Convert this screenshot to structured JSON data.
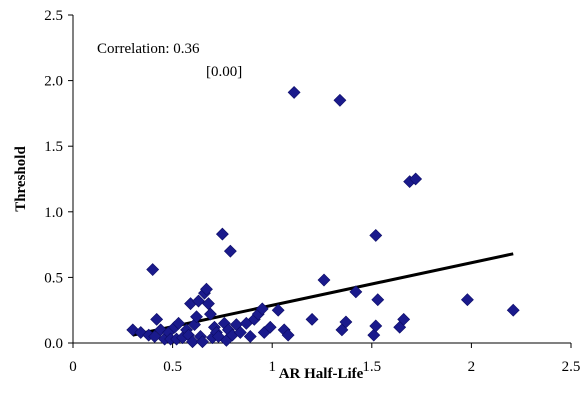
{
  "chart_data": {
    "type": "scatter",
    "xlabel": "AR Half-Life",
    "ylabel": "Threshold",
    "xlim": [
      0,
      2.5
    ],
    "ylim": [
      0,
      2.5
    ],
    "x_ticks": [
      "0",
      "0.5",
      "1",
      "1.5",
      "2",
      "2.5"
    ],
    "y_ticks": [
      "0.0",
      "0.5",
      "1.0",
      "1.5",
      "2.0",
      "2.5"
    ],
    "grid": false,
    "annotation": {
      "line1": "Correlation: 0.36",
      "line2": "[0.00]"
    },
    "marker_color": "#1a1a8c",
    "trend_line": {
      "x": [
        0.3,
        2.21
      ],
      "y": [
        0.06,
        0.68
      ]
    },
    "points": [
      {
        "x": 0.3,
        "y": 0.1
      },
      {
        "x": 0.34,
        "y": 0.08
      },
      {
        "x": 0.38,
        "y": 0.06
      },
      {
        "x": 0.4,
        "y": 0.56
      },
      {
        "x": 0.41,
        "y": 0.05
      },
      {
        "x": 0.42,
        "y": 0.18
      },
      {
        "x": 0.44,
        "y": 0.1
      },
      {
        "x": 0.46,
        "y": 0.03
      },
      {
        "x": 0.48,
        "y": 0.08
      },
      {
        "x": 0.49,
        "y": 0.03
      },
      {
        "x": 0.51,
        "y": 0.12
      },
      {
        "x": 0.52,
        "y": 0.03
      },
      {
        "x": 0.53,
        "y": 0.15
      },
      {
        "x": 0.55,
        "y": 0.04
      },
      {
        "x": 0.57,
        "y": 0.1
      },
      {
        "x": 0.58,
        "y": 0.06
      },
      {
        "x": 0.59,
        "y": 0.3
      },
      {
        "x": 0.6,
        "y": 0.01
      },
      {
        "x": 0.61,
        "y": 0.14
      },
      {
        "x": 0.62,
        "y": 0.2
      },
      {
        "x": 0.63,
        "y": 0.32
      },
      {
        "x": 0.64,
        "y": 0.05
      },
      {
        "x": 0.65,
        "y": 0.01
      },
      {
        "x": 0.66,
        "y": 0.38
      },
      {
        "x": 0.67,
        "y": 0.41
      },
      {
        "x": 0.68,
        "y": 0.3
      },
      {
        "x": 0.69,
        "y": 0.22
      },
      {
        "x": 0.7,
        "y": 0.04
      },
      {
        "x": 0.71,
        "y": 0.12
      },
      {
        "x": 0.72,
        "y": 0.08
      },
      {
        "x": 0.73,
        "y": 0.05
      },
      {
        "x": 0.75,
        "y": 0.83
      },
      {
        "x": 0.76,
        "y": 0.15
      },
      {
        "x": 0.77,
        "y": 0.02
      },
      {
        "x": 0.78,
        "y": 0.1
      },
      {
        "x": 0.79,
        "y": 0.7
      },
      {
        "x": 0.8,
        "y": 0.06
      },
      {
        "x": 0.82,
        "y": 0.14
      },
      {
        "x": 0.84,
        "y": 0.08
      },
      {
        "x": 0.87,
        "y": 0.15
      },
      {
        "x": 0.89,
        "y": 0.05
      },
      {
        "x": 0.91,
        "y": 0.18
      },
      {
        "x": 0.93,
        "y": 0.22
      },
      {
        "x": 0.95,
        "y": 0.26
      },
      {
        "x": 0.96,
        "y": 0.08
      },
      {
        "x": 0.99,
        "y": 0.12
      },
      {
        "x": 1.03,
        "y": 0.25
      },
      {
        "x": 1.06,
        "y": 0.1
      },
      {
        "x": 1.08,
        "y": 0.06
      },
      {
        "x": 1.11,
        "y": 1.91
      },
      {
        "x": 1.2,
        "y": 0.18
      },
      {
        "x": 1.26,
        "y": 0.48
      },
      {
        "x": 1.34,
        "y": 1.85
      },
      {
        "x": 1.35,
        "y": 0.1
      },
      {
        "x": 1.37,
        "y": 0.16
      },
      {
        "x": 1.42,
        "y": 0.39
      },
      {
        "x": 1.51,
        "y": 0.06
      },
      {
        "x": 1.52,
        "y": 0.13
      },
      {
        "x": 1.52,
        "y": 0.82
      },
      {
        "x": 1.53,
        "y": 0.33
      },
      {
        "x": 1.64,
        "y": 0.12
      },
      {
        "x": 1.66,
        "y": 0.18
      },
      {
        "x": 1.69,
        "y": 1.23
      },
      {
        "x": 1.72,
        "y": 1.25
      },
      {
        "x": 1.98,
        "y": 0.33
      },
      {
        "x": 2.21,
        "y": 0.25
      }
    ]
  }
}
